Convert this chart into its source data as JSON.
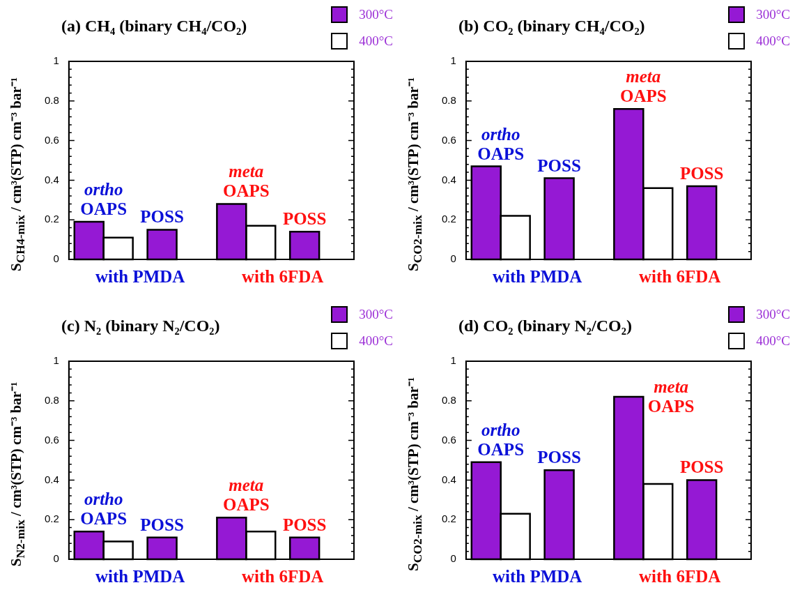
{
  "chart_data": [
    {
      "type": "bar",
      "title": "(a) CH₄ (binary CH₄/CO₂)",
      "ylabel": "S$_{CH4-mix}$ / cm³(STP) cm⁻³ bar⁻¹",
      "categories": [
        "with PMDA",
        "with 6FDA"
      ],
      "series": [
        {
          "name": "300°C",
          "color": "#9519d4",
          "values": [
            0.19,
            0.28
          ]
        },
        {
          "name": "400°C",
          "color": "#ffffff",
          "values": [
            0.11,
            0.17
          ]
        },
        {
          "color": "#9519d4",
          "values": [
            0.15,
            0.14
          ]
        }
      ],
      "ylim": [
        0,
        1
      ],
      "yticks": [
        0,
        {
          "value": 0.04,
          "label": null
        },
        {
          "value": 0.08,
          "label": null
        },
        {
          "value": 0.12,
          "label": null
        },
        {
          "value": 0.16,
          "label": null
        },
        0.2,
        {
          "value": 0.24,
          "label": null
        },
        {
          "value": 0.28,
          "label": null
        },
        {
          "value": 0.32,
          "label": null
        },
        {
          "value": 0.36,
          "label": null
        },
        0.4,
        {
          "value": 0.44,
          "label": null
        },
        {
          "value": 0.48,
          "label": null
        },
        {
          "value": 0.52,
          "label": null
        },
        {
          "value": 0.56,
          "label": null
        },
        0.6,
        {
          "value": 0.64,
          "label": null
        },
        {
          "value": 0.68,
          "label": null
        },
        {
          "value": 0.72,
          "label": null
        },
        {
          "value": 0.76,
          "label": null
        },
        0.8,
        {
          "value": 0.84,
          "label": null
        },
        {
          "value": 0.88,
          "label": null
        },
        {
          "value": 0.92,
          "label": null
        },
        {
          "value": 0.96,
          "label": null
        },
        1
      ],
      "legend": "top right",
      "annotations": [
        "ortho\nOAPS",
        "POSS",
        "meta\nOAPS",
        "POSS"
      ]
    },
    {
      "type": "bar",
      "title": "(b) CO₂ (binary CH₄/CO₂)",
      "ylabel": "S$_{CO2-mix}$ / cm³(STP) cm⁻³ bar⁻¹",
      "categories": [
        "with PMDA",
        "with 6FDA"
      ],
      "series": [
        {
          "name": "300°C",
          "color": "#9519d4",
          "values": [
            0.47,
            0.76
          ]
        },
        {
          "name": "400°C",
          "color": "#ffffff",
          "values": [
            0.22,
            0.36
          ]
        },
        {
          "color": "#9519d4",
          "values": [
            0.41,
            0.37
          ]
        }
      ],
      "ylim": [
        0,
        1
      ],
      "yticks": [
        0,
        {
          "value": 0.04,
          "label": null
        },
        {
          "value": 0.08,
          "label": null
        },
        {
          "value": 0.12,
          "label": null
        },
        {
          "value": 0.16,
          "label": null
        },
        0.2,
        {
          "value": 0.24,
          "label": null
        },
        {
          "value": 0.28,
          "label": null
        },
        {
          "value": 0.32,
          "label": null
        },
        {
          "value": 0.36,
          "label": null
        },
        0.4,
        {
          "value": 0.44,
          "label": null
        },
        {
          "value": 0.48,
          "label": null
        },
        {
          "value": 0.52,
          "label": null
        },
        {
          "value": 0.56,
          "label": null
        },
        0.6,
        {
          "value": 0.64,
          "label": null
        },
        {
          "value": 0.68,
          "label": null
        },
        {
          "value": 0.72,
          "label": null
        },
        {
          "value": 0.76,
          "label": null
        },
        0.8,
        {
          "value": 0.84,
          "label": null
        },
        {
          "value": 0.88,
          "label": null
        },
        {
          "value": 0.92,
          "label": null
        },
        {
          "value": 0.96,
          "label": null
        },
        1
      ],
      "legend": "top right",
      "annotations": [
        "ortho\nOAPS",
        "POSS",
        "meta\nOAPS",
        "POSS"
      ]
    },
    {
      "type": "bar",
      "title": "(c) N₂ (binary N₂/CO₂)",
      "ylabel": "S$_{N2-mix}$ / cm³(STP) cm⁻³ bar⁻¹",
      "categories": [
        "with PMDA",
        "with 6FDA"
      ],
      "series": [
        {
          "name": "300°C",
          "color": "#9519d4",
          "values": [
            0.14,
            0.21
          ]
        },
        {
          "name": "400°C",
          "color": "#ffffff",
          "values": [
            0.09,
            0.14
          ]
        },
        {
          "color": "#9519d4",
          "values": [
            0.11,
            0.11
          ]
        }
      ],
      "ylim": [
        0,
        1
      ],
      "yticks": [
        0,
        {
          "value": 0.04,
          "label": null
        },
        {
          "value": 0.08,
          "label": null
        },
        {
          "value": 0.12,
          "label": null
        },
        {
          "value": 0.16,
          "label": null
        },
        0.2,
        {
          "value": 0.24,
          "label": null
        },
        {
          "value": 0.28,
          "label": null
        },
        {
          "value": 0.32,
          "label": null
        },
        {
          "value": 0.36,
          "label": null
        },
        0.4,
        {
          "value": 0.44,
          "label": null
        },
        {
          "value": 0.48,
          "label": null
        },
        {
          "value": 0.52,
          "label": null
        },
        {
          "value": 0.56,
          "label": null
        },
        0.6,
        {
          "value": 0.64,
          "label": null
        },
        {
          "value": 0.68,
          "label": null
        },
        {
          "value": 0.72,
          "label": null
        },
        {
          "value": 0.76,
          "label": null
        },
        0.8,
        {
          "value": 0.84,
          "label": null
        },
        {
          "value": 0.88,
          "label": null
        },
        {
          "value": 0.92,
          "label": null
        },
        {
          "value": 0.96,
          "label": null
        },
        1
      ],
      "legend": "top right",
      "annotations": [
        "ortho\nOAPS",
        "POSS",
        "meta\nOAPS",
        "POSS"
      ]
    },
    {
      "type": "bar",
      "title": "(d) CO₂ (binary N₂/CO₂)",
      "ylabel": "S$_{CO2-mix}$ / cm³(STP) cm⁻³ bar⁻¹",
      "categories": [
        "with PMDA",
        "with 6FDA"
      ],
      "series": [
        {
          "name": "300°C",
          "color": "#9519d4",
          "values": [
            0.49,
            0.82
          ]
        },
        {
          "name": "400°C",
          "color": "#ffffff",
          "values": [
            0.23,
            0.38
          ]
        },
        {
          "color": "#9519d4",
          "values": [
            0.45,
            0.4
          ]
        }
      ],
      "ylim": [
        0,
        1
      ],
      "yticks": [
        0,
        {
          "value": 0.04,
          "label": null
        },
        {
          "value": 0.08,
          "label": null
        },
        {
          "value": 0.12,
          "label": null
        },
        {
          "value": 0.16,
          "label": null
        },
        0.2,
        {
          "value": 0.24,
          "label": null
        },
        {
          "value": 0.28,
          "label": null
        },
        {
          "value": 0.32,
          "label": null
        },
        {
          "value": 0.36,
          "label": null
        },
        0.4,
        {
          "value": 0.44,
          "label": null
        },
        {
          "value": 0.48,
          "label": null
        },
        {
          "value": 0.52,
          "label": null
        },
        {
          "value": 0.56,
          "label": null
        },
        0.6,
        {
          "value": 0.64,
          "label": null
        },
        {
          "value": 0.68,
          "label": null
        },
        {
          "value": 0.72,
          "label": null
        },
        {
          "value": 0.76,
          "label": null
        },
        0.8,
        {
          "value": 0.84,
          "label": null
        },
        {
          "value": 0.88,
          "label": null
        },
        {
          "value": 0.92,
          "label": null
        },
        {
          "value": 0.96,
          "label": null
        },
        1
      ],
      "legend": "top right",
      "annotations": [
        "ortho\nOAPS",
        "POSS",
        "meta\nOAPS",
        "POSS"
      ]
    }
  ]
}
